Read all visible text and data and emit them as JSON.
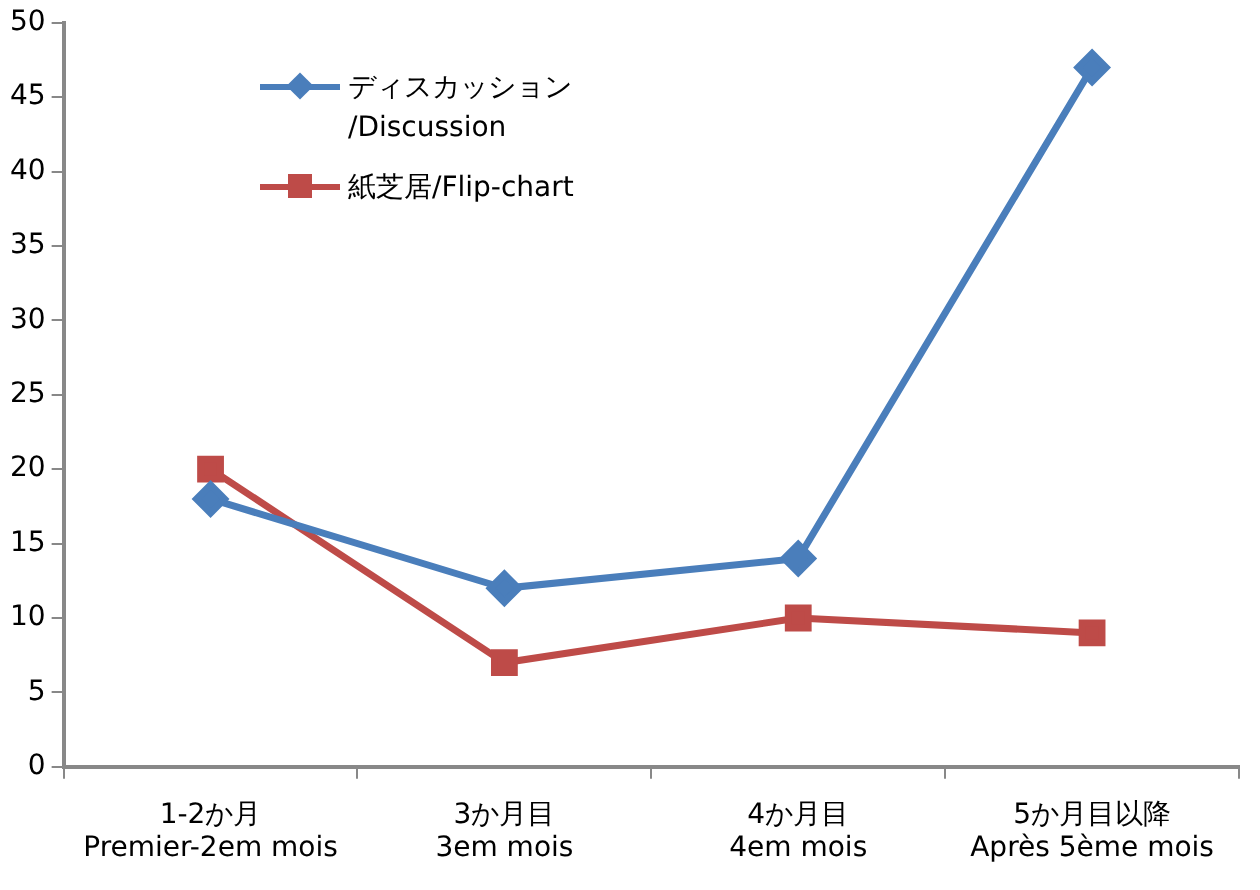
{
  "chart_data": {
    "type": "line",
    "categories": [
      "1-2か月\nPremier-2em mois",
      "3か月目\n3em mois",
      "4か月目\n4em mois",
      "5か月目以降\nAprès 5ème mois"
    ],
    "series": [
      {
        "name": "ディスカッション\n/Discussion",
        "color": "#4a7ebb",
        "marker": "diamond",
        "values": [
          18,
          12,
          14,
          47
        ]
      },
      {
        "name": "紙芝居/Flip-chart",
        "color": "#be4b48",
        "marker": "square",
        "values": [
          20,
          7,
          10,
          9
        ]
      }
    ],
    "ylim": [
      0,
      50
    ],
    "yticks": [
      0,
      5,
      10,
      15,
      20,
      25,
      30,
      35,
      40,
      45,
      50
    ],
    "grid": false,
    "legend": "top left"
  }
}
